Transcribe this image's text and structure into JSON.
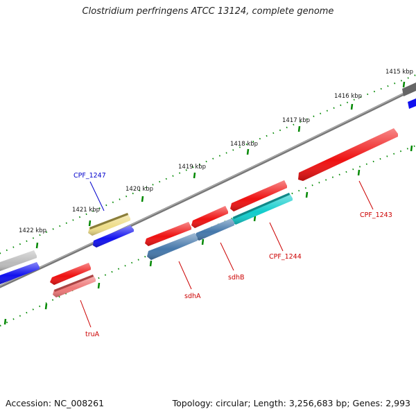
{
  "title": "Clostridium perfringens ATCC 13124, complete genome",
  "footer": {
    "accession": "Accession: NC_008261",
    "stats": "Topology: circular; Length: 3,256,683 bp; Genes: 2,993"
  },
  "colors": {
    "backbone": "#777777",
    "ticks": "#008800",
    "red_gene": "#ee1111",
    "pink_gene": "#ee7777",
    "blue_gene": "#1111ee",
    "steel_gene": "#4477aa",
    "cyan_gene": "#11cccc",
    "yellow_gene": "#eedd88",
    "gray_gene": "#bbbbbb",
    "darkgray_gene": "#666666",
    "label_red": "#cc0000",
    "label_blue": "#0000cc"
  },
  "ticks": [
    {
      "label": "1415 kbp",
      "kbp": 1415
    },
    {
      "label": "1416 kbp",
      "kbp": 1416
    },
    {
      "label": "1417 kbp",
      "kbp": 1417
    },
    {
      "label": "1418 kbp",
      "kbp": 1418
    },
    {
      "label": "1419 kbp",
      "kbp": 1419
    },
    {
      "label": "1420 kbp",
      "kbp": 1420
    },
    {
      "label": "1421 kbp",
      "kbp": 1421
    },
    {
      "label": "1422 kbp",
      "kbp": 1422
    }
  ],
  "labels": [
    {
      "text": "CPF_1247",
      "color": "label_blue"
    },
    {
      "text": "truA",
      "color": "label_red"
    },
    {
      "text": "sdhA",
      "color": "label_red"
    },
    {
      "text": "sdhB",
      "color": "label_red"
    },
    {
      "text": "CPF_1244",
      "color": "label_red"
    },
    {
      "text": "CPF_1243",
      "color": "label_red"
    }
  ]
}
